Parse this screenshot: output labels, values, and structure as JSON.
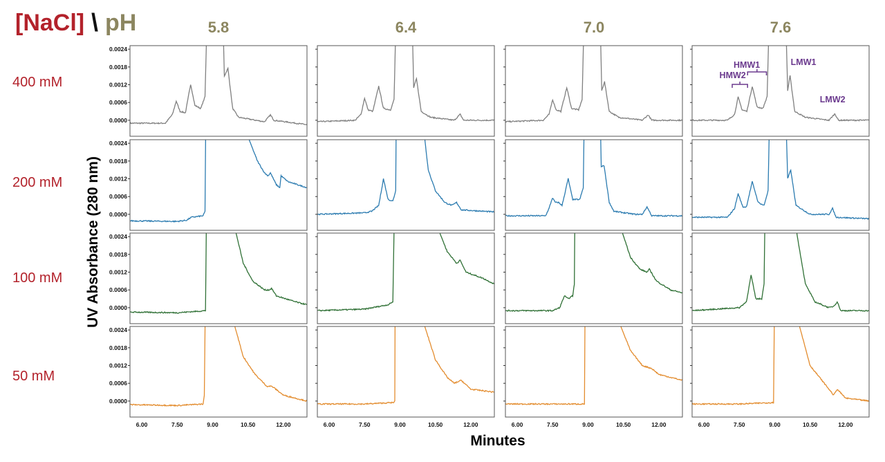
{
  "header": {
    "nacl": "[NaCl]",
    "slash": "\\",
    "ph": "pH"
  },
  "ph_labels": [
    "5.8",
    "6.4",
    "7.0",
    "7.6"
  ],
  "nacl_labels": [
    "400 mM",
    "200 mM",
    "100 mM",
    "50 mM"
  ],
  "y_title": "UV Absorbance (280 nm)",
  "x_title": "Minutes",
  "chart_data": {
    "type": "line",
    "layout": "grid 4 rows (NaCl) x 4 columns (pH)",
    "xlabel": "Minutes",
    "ylabel": "UV Absorbance (280 nm)",
    "xlim": [
      5.5,
      13.0
    ],
    "ylim": [
      -0.00054,
      0.00252
    ],
    "x_ticks": [
      "6.00",
      "7.50",
      "9.00",
      "10.50",
      "12.00"
    ],
    "x_tick_values": [
      6.0,
      7.5,
      9.0,
      10.5,
      12.0
    ],
    "y_ticks": [
      "0.0000",
      "0.0006",
      "0.0012",
      "0.0018",
      "0.0024"
    ],
    "y_tick_values": [
      0,
      0.0006,
      0.0012,
      0.0018,
      0.0024
    ],
    "row_colors": [
      "#7f7f7f",
      "#2b7bb0",
      "#2f7035",
      "#e38c2e"
    ],
    "annotations": [
      {
        "text": "HMW2",
        "x": 7.45,
        "panel": "400 mM / 7.6"
      },
      {
        "text": "HMW1",
        "x": 8.05,
        "panel": "400 mM / 7.6"
      },
      {
        "text": "LMW1",
        "x": 9.68,
        "panel": "400 mM / 7.6"
      },
      {
        "text": "LMW2",
        "x": 11.5,
        "panel": "400 mM / 7.6"
      }
    ],
    "annotation_color": "#6b3a8e",
    "series": [
      {
        "nacl": "400 mM",
        "ph": "5.8",
        "points": [
          [
            5.5,
            -0.0001
          ],
          [
            7.0,
            -0.0001
          ],
          [
            7.3,
            0.0002
          ],
          [
            7.46,
            0.00065
          ],
          [
            7.62,
            0.0003
          ],
          [
            7.85,
            0.00025
          ],
          [
            8.07,
            0.00122
          ],
          [
            8.25,
            0.0005
          ],
          [
            8.5,
            0.0004
          ],
          [
            8.68,
            0.0008
          ],
          [
            8.78,
            0.004
          ],
          [
            9.42,
            0.004
          ],
          [
            9.5,
            0.0015
          ],
          [
            9.65,
            0.00175
          ],
          [
            9.85,
            0.0004
          ],
          [
            10.1,
            0.0001
          ],
          [
            11.2,
            -5e-05
          ],
          [
            11.45,
            0.00018
          ],
          [
            11.6,
            0.0
          ],
          [
            13.0,
            -0.00015
          ]
        ]
      },
      {
        "nacl": "400 mM",
        "ph": "6.4",
        "points": [
          [
            5.5,
            -5e-05
          ],
          [
            7.1,
            0.0
          ],
          [
            7.35,
            0.0002
          ],
          [
            7.5,
            0.00075
          ],
          [
            7.65,
            0.00035
          ],
          [
            7.85,
            0.0003
          ],
          [
            8.1,
            0.00115
          ],
          [
            8.3,
            0.0004
          ],
          [
            8.6,
            0.00035
          ],
          [
            8.75,
            0.0007
          ],
          [
            8.85,
            0.004
          ],
          [
            9.5,
            0.004
          ],
          [
            9.58,
            0.0011
          ],
          [
            9.7,
            0.0014
          ],
          [
            9.9,
            0.0003
          ],
          [
            10.3,
            0.0001
          ],
          [
            11.3,
            0.0
          ],
          [
            11.55,
            0.0002
          ],
          [
            11.7,
            0.0
          ],
          [
            13.0,
            0.0
          ]
        ]
      },
      {
        "nacl": "400 mM",
        "ph": "7.0",
        "points": [
          [
            5.5,
            -5e-05
          ],
          [
            7.1,
            0.0
          ],
          [
            7.35,
            0.0002
          ],
          [
            7.5,
            0.0007
          ],
          [
            7.65,
            0.00035
          ],
          [
            7.85,
            0.0003
          ],
          [
            8.1,
            0.0011
          ],
          [
            8.3,
            0.0004
          ],
          [
            8.6,
            0.00035
          ],
          [
            8.75,
            0.0007
          ],
          [
            8.85,
            0.004
          ],
          [
            9.5,
            0.004
          ],
          [
            9.58,
            0.001
          ],
          [
            9.7,
            0.0013
          ],
          [
            9.9,
            0.0003
          ],
          [
            10.3,
            0.0001
          ],
          [
            11.3,
            0.0
          ],
          [
            11.55,
            0.00018
          ],
          [
            11.7,
            0.0
          ],
          [
            13.0,
            0.0
          ]
        ]
      },
      {
        "nacl": "400 mM",
        "ph": "7.6",
        "points": [
          [
            5.5,
            0.0
          ],
          [
            7.0,
            0.0
          ],
          [
            7.3,
            0.0002
          ],
          [
            7.45,
            0.00078
          ],
          [
            7.62,
            0.00035
          ],
          [
            7.82,
            0.0003
          ],
          [
            8.05,
            0.00115
          ],
          [
            8.25,
            0.00045
          ],
          [
            8.5,
            0.0004
          ],
          [
            8.68,
            0.0008
          ],
          [
            8.78,
            0.004
          ],
          [
            9.45,
            0.004
          ],
          [
            9.55,
            0.001
          ],
          [
            9.65,
            0.0015
          ],
          [
            9.85,
            0.0003
          ],
          [
            10.3,
            0.0001
          ],
          [
            11.3,
            0.0
          ],
          [
            11.55,
            0.00022
          ],
          [
            11.7,
            0.0
          ],
          [
            13.0,
            0.0
          ]
        ]
      },
      {
        "nacl": "200 mM",
        "ph": "5.8",
        "points": [
          [
            5.5,
            -0.00022
          ],
          [
            7.5,
            -0.00024
          ],
          [
            7.9,
            -0.0002
          ],
          [
            8.1,
            -0.0001
          ],
          [
            8.6,
            -5e-05
          ],
          [
            8.68,
            0.0001
          ],
          [
            8.72,
            0.004
          ],
          [
            10.5,
            0.004
          ],
          [
            10.56,
            0.0025
          ],
          [
            10.9,
            0.0018
          ],
          [
            11.2,
            0.0014
          ],
          [
            11.35,
            0.0013
          ],
          [
            11.45,
            0.0014
          ],
          [
            11.7,
            0.001
          ],
          [
            11.85,
            0.0009
          ],
          [
            11.9,
            0.0013
          ],
          [
            12.2,
            0.0011
          ],
          [
            13.0,
            0.0009
          ]
        ]
      },
      {
        "nacl": "200 mM",
        "ph": "6.4",
        "points": [
          [
            5.5,
            0.0
          ],
          [
            7.5,
            5e-05
          ],
          [
            7.8,
            0.0001
          ],
          [
            8.1,
            0.0003
          ],
          [
            8.3,
            0.0012
          ],
          [
            8.5,
            0.0005
          ],
          [
            8.7,
            0.00045
          ],
          [
            8.82,
            0.0008
          ],
          [
            8.85,
            0.004
          ],
          [
            10.0,
            0.004
          ],
          [
            10.06,
            0.0025
          ],
          [
            10.2,
            0.0015
          ],
          [
            10.5,
            0.0008
          ],
          [
            10.9,
            0.0004
          ],
          [
            11.2,
            0.0003
          ],
          [
            11.4,
            0.0004
          ],
          [
            11.6,
            0.00015
          ],
          [
            13.0,
            8e-05
          ]
        ]
      },
      {
        "nacl": "200 mM",
        "ph": "7.0",
        "points": [
          [
            5.5,
            -5e-05
          ],
          [
            7.2,
            -5e-05
          ],
          [
            7.35,
            0.0002
          ],
          [
            7.49,
            0.00055
          ],
          [
            7.62,
            0.0004
          ],
          [
            7.75,
            0.0004
          ],
          [
            7.9,
            0.0003
          ],
          [
            8.16,
            0.0012
          ],
          [
            8.35,
            0.0005
          ],
          [
            8.65,
            0.0005
          ],
          [
            8.8,
            0.0009
          ],
          [
            8.85,
            0.004
          ],
          [
            9.5,
            0.004
          ],
          [
            9.56,
            0.0016
          ],
          [
            9.68,
            0.00165
          ],
          [
            9.9,
            0.0004
          ],
          [
            10.1,
            0.0001
          ],
          [
            11.0,
            0.0
          ],
          [
            11.3,
            0.0
          ],
          [
            11.5,
            0.00025
          ],
          [
            11.7,
            -5e-05
          ],
          [
            13.0,
            -5e-05
          ]
        ]
      },
      {
        "nacl": "200 mM",
        "ph": "7.6",
        "points": [
          [
            5.5,
            -0.0001
          ],
          [
            7.0,
            -0.0001
          ],
          [
            7.3,
            0.0002
          ],
          [
            7.45,
            0.0007
          ],
          [
            7.65,
            0.00025
          ],
          [
            7.8,
            0.00025
          ],
          [
            8.05,
            0.0011
          ],
          [
            8.3,
            0.0004
          ],
          [
            8.55,
            0.0003
          ],
          [
            8.72,
            0.0008
          ],
          [
            8.8,
            0.004
          ],
          [
            9.45,
            0.004
          ],
          [
            9.55,
            0.0012
          ],
          [
            9.68,
            0.0015
          ],
          [
            9.9,
            0.0003
          ],
          [
            10.5,
            0.0
          ],
          [
            11.3,
            0.0
          ],
          [
            11.45,
            0.0002
          ],
          [
            11.6,
            -0.0001
          ],
          [
            13.0,
            -0.00015
          ]
        ]
      },
      {
        "nacl": "100 mM",
        "ph": "5.8",
        "points": [
          [
            5.5,
            -0.00015
          ],
          [
            7.5,
            -0.00017
          ],
          [
            8.4,
            -0.00012
          ],
          [
            8.7,
            -0.0001
          ],
          [
            8.75,
            0.004
          ],
          [
            9.95,
            0.004
          ],
          [
            10.0,
            0.0025
          ],
          [
            10.3,
            0.0015
          ],
          [
            10.7,
            0.0009
          ],
          [
            11.2,
            0.0006
          ],
          [
            11.4,
            0.0006
          ],
          [
            11.5,
            0.00065
          ],
          [
            11.7,
            0.0004
          ],
          [
            12.5,
            0.0002
          ],
          [
            13.0,
            0.0001
          ]
        ]
      },
      {
        "nacl": "100 mM",
        "ph": "6.4",
        "points": [
          [
            5.5,
            -0.0001
          ],
          [
            7.5,
            -5e-05
          ],
          [
            8.5,
            0.0001
          ],
          [
            8.7,
            0.0002
          ],
          [
            8.78,
            0.004
          ],
          [
            10.65,
            0.004
          ],
          [
            10.7,
            0.0025
          ],
          [
            11.0,
            0.0019
          ],
          [
            11.4,
            0.0015
          ],
          [
            11.55,
            0.0016
          ],
          [
            11.8,
            0.0012
          ],
          [
            12.5,
            0.001
          ],
          [
            13.0,
            0.0008
          ]
        ]
      },
      {
        "nacl": "100 mM",
        "ph": "7.0",
        "points": [
          [
            5.5,
            -0.0001
          ],
          [
            7.5,
            -0.0001
          ],
          [
            7.8,
            0.0
          ],
          [
            8.0,
            0.0004
          ],
          [
            8.15,
            0.0003
          ],
          [
            8.35,
            0.0004
          ],
          [
            8.42,
            0.0008
          ],
          [
            8.45,
            0.004
          ],
          [
            10.42,
            0.004
          ],
          [
            10.47,
            0.0025
          ],
          [
            10.8,
            0.0017
          ],
          [
            11.2,
            0.0013
          ],
          [
            11.5,
            0.0012
          ],
          [
            11.6,
            0.0013
          ],
          [
            11.9,
            0.0009
          ],
          [
            12.5,
            0.0006
          ],
          [
            13.0,
            0.0005
          ]
        ]
      },
      {
        "nacl": "100 mM",
        "ph": "7.6",
        "points": [
          [
            5.5,
            -0.0001
          ],
          [
            7.5,
            0.0
          ],
          [
            7.8,
            0.0002
          ],
          [
            8.0,
            0.0011
          ],
          [
            8.2,
            0.0003
          ],
          [
            8.45,
            0.0003
          ],
          [
            8.55,
            0.0008
          ],
          [
            8.6,
            0.004
          ],
          [
            9.9,
            0.004
          ],
          [
            9.94,
            0.0025
          ],
          [
            10.3,
            0.0008
          ],
          [
            10.7,
            0.0002
          ],
          [
            11.3,
            0.0
          ],
          [
            11.5,
            5e-05
          ],
          [
            11.65,
            0.0002
          ],
          [
            11.8,
            -0.0001
          ],
          [
            13.0,
            -0.0001
          ]
        ]
      },
      {
        "nacl": "50 mM",
        "ph": "5.8",
        "points": [
          [
            5.5,
            -0.00012
          ],
          [
            7.5,
            -0.00015
          ],
          [
            8.6,
            -0.0001
          ],
          [
            8.65,
            0.0002
          ],
          [
            8.7,
            0.004
          ],
          [
            9.9,
            0.004
          ],
          [
            9.95,
            0.0025
          ],
          [
            10.3,
            0.0015
          ],
          [
            10.8,
            0.0009
          ],
          [
            11.3,
            0.0005
          ],
          [
            11.5,
            0.0005
          ],
          [
            11.6,
            0.00045
          ],
          [
            12.0,
            0.0002
          ],
          [
            13.0,
            0.0
          ]
        ]
      },
      {
        "nacl": "50 mM",
        "ph": "6.4",
        "points": [
          [
            5.5,
            -0.0001
          ],
          [
            7.5,
            -0.0001
          ],
          [
            8.75,
            -5e-05
          ],
          [
            8.78,
            0.0
          ],
          [
            8.8,
            0.004
          ],
          [
            10.0,
            0.004
          ],
          [
            10.06,
            0.0025
          ],
          [
            10.5,
            0.0014
          ],
          [
            11.0,
            0.0008
          ],
          [
            11.3,
            0.0006
          ],
          [
            11.6,
            0.0007
          ],
          [
            12.0,
            0.0004
          ],
          [
            13.0,
            0.0003
          ]
        ]
      },
      {
        "nacl": "50 mM",
        "ph": "7.0",
        "points": [
          [
            5.5,
            -0.0001
          ],
          [
            7.5,
            -0.0001
          ],
          [
            8.85,
            -0.0001
          ],
          [
            8.88,
            0.004
          ],
          [
            10.35,
            0.004
          ],
          [
            10.4,
            0.0025
          ],
          [
            10.8,
            0.0017
          ],
          [
            11.3,
            0.0012
          ],
          [
            11.7,
            0.0011
          ],
          [
            12.0,
            0.0009
          ],
          [
            13.0,
            0.0007
          ]
        ]
      },
      {
        "nacl": "50 mM",
        "ph": "7.6",
        "points": [
          [
            5.5,
            -0.0001
          ],
          [
            7.5,
            -0.0001
          ],
          [
            8.95,
            -5e-05
          ],
          [
            9.0,
            0.004
          ],
          [
            10.0,
            0.004
          ],
          [
            10.06,
            0.0025
          ],
          [
            10.5,
            0.0012
          ],
          [
            11.0,
            0.0007
          ],
          [
            11.5,
            0.0002
          ],
          [
            11.65,
            0.0004
          ],
          [
            12.0,
            0.0001
          ],
          [
            13.0,
            0.0
          ]
        ]
      }
    ]
  }
}
